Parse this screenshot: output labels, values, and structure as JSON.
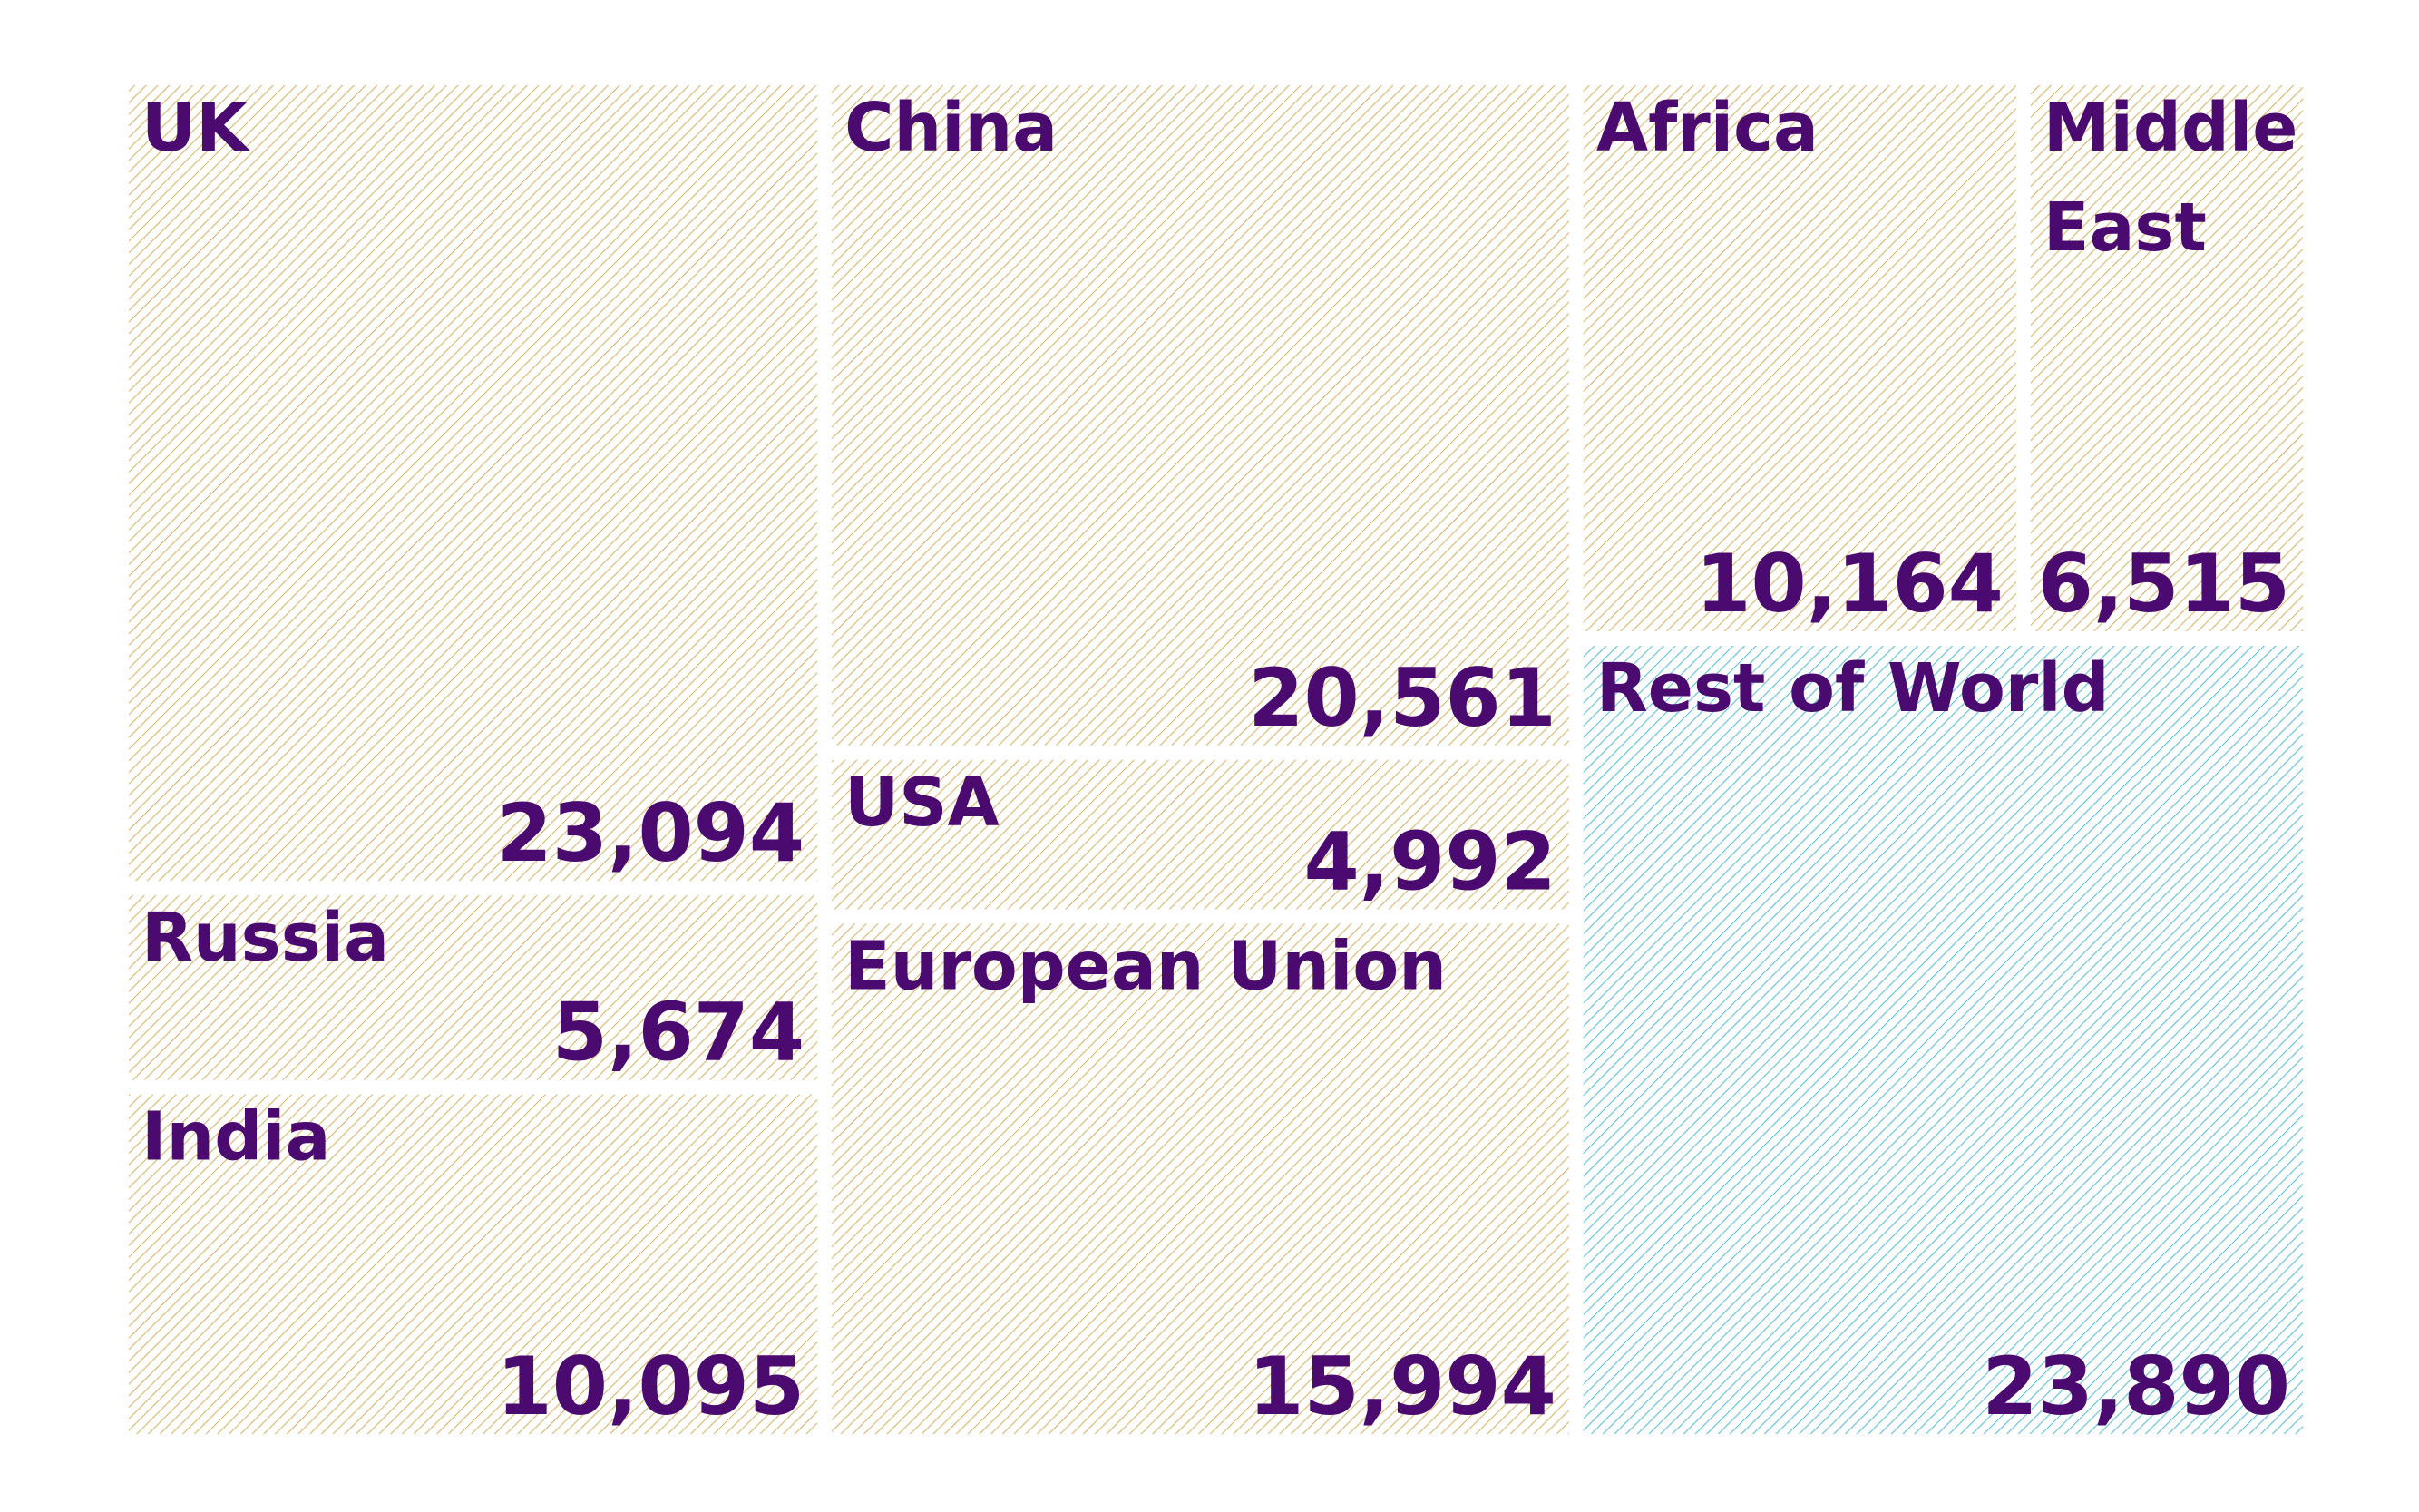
{
  "chart_data": {
    "type": "treemap",
    "categories": [
      "UK",
      "Russia",
      "India",
      "China",
      "USA",
      "European Union",
      "Africa",
      "Middle East",
      "Rest of World"
    ],
    "values": [
      23094,
      5674,
      10095,
      20561,
      4992,
      15994,
      10164,
      6515,
      23890
    ],
    "value_labels": [
      "23,094",
      "5,674",
      "10,095",
      "20,561",
      "4,992",
      "15,994",
      "10,164",
      "6,515",
      "23,890"
    ],
    "colors": [
      "#d9b56a",
      "#d9b56a",
      "#d9b56a",
      "#d9b56a",
      "#d9b56a",
      "#d9b56a",
      "#d9b56a",
      "#d9b56a",
      "#5cc0d8"
    ],
    "label_color": "#4b0a70"
  }
}
